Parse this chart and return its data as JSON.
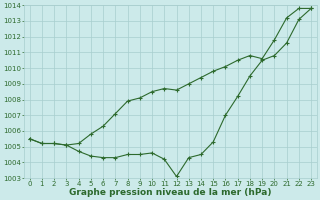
{
  "xlabel": "Graphe pression niveau de la mer (hPa)",
  "x": [
    0,
    1,
    2,
    3,
    4,
    5,
    6,
    7,
    8,
    9,
    10,
    11,
    12,
    13,
    14,
    15,
    16,
    17,
    18,
    19,
    20,
    21,
    22,
    23
  ],
  "line1": [
    1005.5,
    1005.2,
    1005.2,
    1005.1,
    1004.7,
    1004.4,
    1004.3,
    1004.3,
    1004.5,
    1004.5,
    1004.6,
    1004.2,
    1003.1,
    1004.3,
    1004.5,
    1005.3,
    1007.0,
    1008.2,
    1009.5,
    1010.5,
    1010.8,
    1011.6,
    1013.1,
    1013.8
  ],
  "line2": [
    1005.5,
    1005.2,
    1005.2,
    1005.1,
    1005.2,
    1005.8,
    1006.3,
    1007.1,
    1007.9,
    1008.1,
    1008.5,
    1008.7,
    1008.6,
    1009.0,
    1009.4,
    1009.8,
    1010.1,
    1010.5,
    1010.8,
    1010.6,
    1011.8,
    1013.2,
    1013.8,
    1013.8
  ],
  "line_color": "#2d6a2d",
  "bg_color": "#cceaea",
  "grid_color": "#a8cece",
  "ylim_min": 1003,
  "ylim_max": 1014,
  "yticks": [
    1003,
    1004,
    1005,
    1006,
    1007,
    1008,
    1009,
    1010,
    1011,
    1012,
    1013,
    1014
  ],
  "xticks": [
    0,
    1,
    2,
    3,
    4,
    5,
    6,
    7,
    8,
    9,
    10,
    11,
    12,
    13,
    14,
    15,
    16,
    17,
    18,
    19,
    20,
    21,
    22,
    23
  ],
  "tick_fontsize": 5.0,
  "xlabel_fontsize": 6.5
}
